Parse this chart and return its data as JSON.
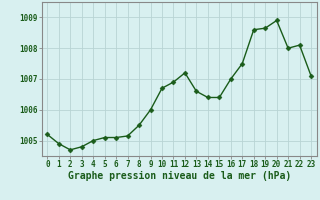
{
  "x": [
    0,
    1,
    2,
    3,
    4,
    5,
    6,
    7,
    8,
    9,
    10,
    11,
    12,
    13,
    14,
    15,
    16,
    17,
    18,
    19,
    20,
    21,
    22,
    23
  ],
  "y": [
    1005.2,
    1004.9,
    1004.7,
    1004.8,
    1005.0,
    1005.1,
    1005.1,
    1005.15,
    1005.5,
    1006.0,
    1006.7,
    1006.9,
    1007.2,
    1006.6,
    1006.4,
    1006.4,
    1007.0,
    1007.5,
    1008.6,
    1008.65,
    1008.9,
    1008.0,
    1008.1,
    1007.1
  ],
  "line_color": "#1a5c1a",
  "marker_color": "#1a5c1a",
  "bg_color": "#d8f0f0",
  "grid_color": "#b8d4d4",
  "tick_color": "#1a5c1a",
  "xlabel": "Graphe pression niveau de la mer (hPa)",
  "ylim_min": 1004.5,
  "ylim_max": 1009.5,
  "yticks": [
    1005,
    1006,
    1007,
    1008,
    1009
  ],
  "xticks": [
    0,
    1,
    2,
    3,
    4,
    5,
    6,
    7,
    8,
    9,
    10,
    11,
    12,
    13,
    14,
    15,
    16,
    17,
    18,
    19,
    20,
    21,
    22,
    23
  ],
  "tick_label_fontsize": 5.5,
  "xlabel_fontsize": 7.0,
  "marker_size": 2.5,
  "line_width": 1.0,
  "spine_color": "#888888"
}
